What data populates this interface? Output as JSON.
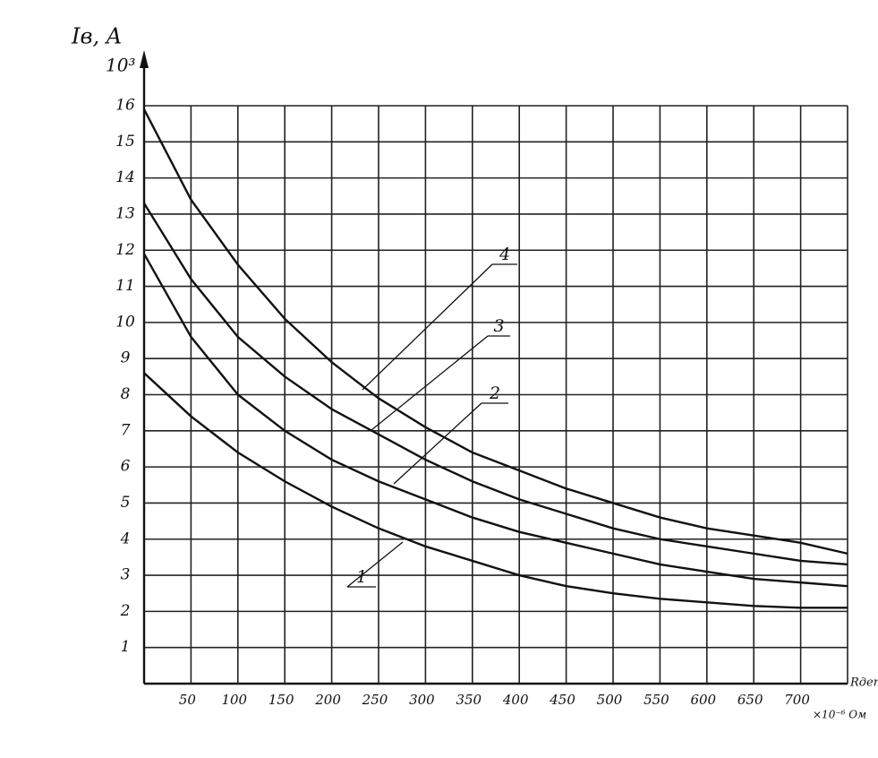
{
  "chart_data": {
    "type": "line",
    "y_label": "Iв, A",
    "y_unit": "10³",
    "x_label": "Rдет",
    "x_unit": "×10⁻⁶ Ом",
    "x": [
      0,
      50,
      100,
      150,
      200,
      250,
      300,
      350,
      400,
      450,
      500,
      550,
      600,
      650,
      700,
      750
    ],
    "series": [
      {
        "name": "1",
        "color": "#111111",
        "values": [
          8.6,
          7.4,
          6.4,
          5.6,
          4.9,
          4.3,
          3.8,
          3.4,
          3.0,
          2.7,
          2.5,
          2.35,
          2.25,
          2.15,
          2.1,
          2.1
        ]
      },
      {
        "name": "2",
        "color": "#111111",
        "values": [
          11.9,
          9.6,
          8.0,
          7.0,
          6.2,
          5.6,
          5.1,
          4.6,
          4.2,
          3.9,
          3.6,
          3.3,
          3.1,
          2.9,
          2.8,
          2.7
        ]
      },
      {
        "name": "3",
        "color": "#111111",
        "values": [
          13.3,
          11.2,
          9.6,
          8.5,
          7.6,
          6.9,
          6.2,
          5.6,
          5.1,
          4.7,
          4.3,
          4.0,
          3.8,
          3.6,
          3.4,
          3.3
        ]
      },
      {
        "name": "4",
        "color": "#111111",
        "values": [
          15.9,
          13.4,
          11.6,
          10.1,
          8.9,
          7.9,
          7.1,
          6.4,
          5.9,
          5.4,
          5.0,
          4.6,
          4.3,
          4.1,
          3.9,
          3.6
        ]
      }
    ],
    "xlim": [
      0,
      750
    ],
    "xticks": [
      50,
      100,
      150,
      200,
      250,
      300,
      350,
      400,
      450,
      500,
      550,
      600,
      650,
      700
    ],
    "ylim": [
      0,
      16
    ],
    "yticks": [
      1,
      2,
      3,
      4,
      5,
      6,
      7,
      8,
      9,
      10,
      11,
      12,
      13,
      14,
      15,
      16
    ],
    "grid": true
  }
}
